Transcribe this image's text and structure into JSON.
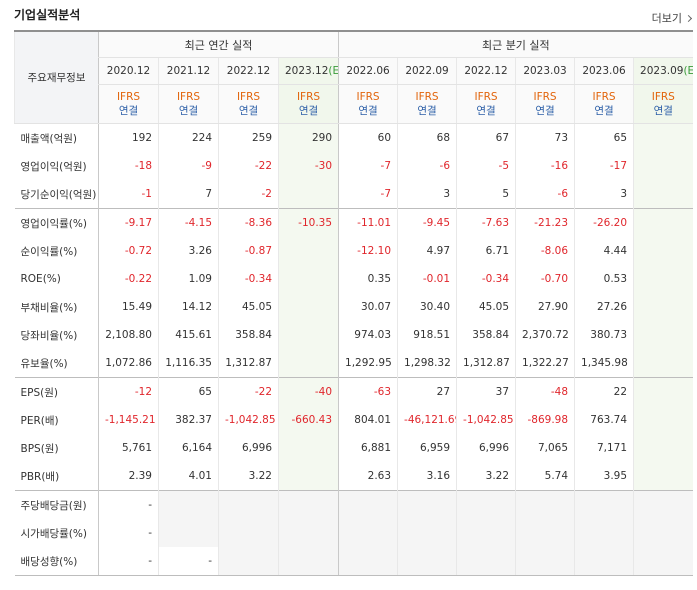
{
  "header": {
    "title": "기업실적분석",
    "more": "더보기"
  },
  "table": {
    "corner": "주요재무정보",
    "groups": [
      "최근 연간 실적",
      "최근 분기 실적"
    ],
    "columns": [
      {
        "date": "2020.12",
        "std": "IFRS",
        "scope": "연결"
      },
      {
        "date": "2021.12",
        "std": "IFRS",
        "scope": "연결"
      },
      {
        "date": "2022.12",
        "std": "IFRS",
        "scope": "연결"
      },
      {
        "date": "2023.12",
        "est": "(E)",
        "std": "IFRS",
        "scope": "연결"
      },
      {
        "date": "2022.06",
        "std": "IFRS",
        "scope": "연결"
      },
      {
        "date": "2022.09",
        "std": "IFRS",
        "scope": "연결"
      },
      {
        "date": "2022.12",
        "std": "IFRS",
        "scope": "연결"
      },
      {
        "date": "2023.03",
        "std": "IFRS",
        "scope": "연결"
      },
      {
        "date": "2023.06",
        "std": "IFRS",
        "scope": "연결"
      },
      {
        "date": "2023.09",
        "est": "(E)",
        "std": "IFRS",
        "scope": "연결"
      }
    ],
    "rows": [
      {
        "label": "매출액(억원)",
        "cells": [
          "192",
          "224",
          "259",
          "290",
          "60",
          "68",
          "67",
          "73",
          "65",
          null
        ]
      },
      {
        "label": "영업이익(억원)",
        "cells": [
          "-18",
          "-9",
          "-22",
          "-30",
          "-7",
          "-6",
          "-5",
          "-16",
          "-17",
          null
        ]
      },
      {
        "label": "당기순이익(억원)",
        "cells": [
          "-1",
          "7",
          "-2",
          null,
          "-7",
          "3",
          "5",
          "-6",
          "3",
          null
        ]
      },
      {
        "label": "영업이익률(%)",
        "cells": [
          "-9.17",
          "-4.15",
          "-8.36",
          "-10.35",
          "-11.01",
          "-9.45",
          "-7.63",
          "-21.23",
          "-26.20",
          null
        ]
      },
      {
        "label": "순이익률(%)",
        "cells": [
          "-0.72",
          "3.26",
          "-0.87",
          null,
          "-12.10",
          "4.97",
          "6.71",
          "-8.06",
          "4.44",
          null
        ]
      },
      {
        "label": "ROE(%)",
        "cells": [
          "-0.22",
          "1.09",
          "-0.34",
          null,
          "0.35",
          "-0.01",
          "-0.34",
          "-0.70",
          "0.53",
          null
        ]
      },
      {
        "label": "부채비율(%)",
        "cells": [
          "15.49",
          "14.12",
          "45.05",
          null,
          "30.07",
          "30.40",
          "45.05",
          "27.90",
          "27.26",
          null
        ]
      },
      {
        "label": "당좌비율(%)",
        "cells": [
          "2,108.80",
          "415.61",
          "358.84",
          null,
          "974.03",
          "918.51",
          "358.84",
          "2,370.72",
          "380.73",
          null
        ]
      },
      {
        "label": "유보율(%)",
        "cells": [
          "1,072.86",
          "1,116.35",
          "1,312.87",
          null,
          "1,292.95",
          "1,298.32",
          "1,312.87",
          "1,322.27",
          "1,345.98",
          null
        ]
      },
      {
        "label": "EPS(원)",
        "cells": [
          "-12",
          "65",
          "-22",
          "-40",
          "-63",
          "27",
          "37",
          "-48",
          "22",
          null
        ]
      },
      {
        "label": "PER(배)",
        "cells": [
          "-1,145.21",
          "382.37",
          "-1,042.85",
          "-660.43",
          "804.01",
          "-46,121.69",
          "-1,042.85",
          "-869.98",
          "763.74",
          null
        ]
      },
      {
        "label": "BPS(원)",
        "cells": [
          "5,761",
          "6,164",
          "6,996",
          null,
          "6,881",
          "6,959",
          "6,996",
          "7,065",
          "7,171",
          null
        ]
      },
      {
        "label": "PBR(배)",
        "cells": [
          "2.39",
          "4.01",
          "3.22",
          null,
          "2.63",
          "3.16",
          "3.22",
          "5.74",
          "3.95",
          null
        ]
      },
      {
        "label": "주당배당금(원)",
        "cells": [
          "-",
          null,
          null,
          null,
          null,
          null,
          null,
          null,
          null,
          null
        ]
      },
      {
        "label": "시가배당률(%)",
        "cells": [
          "-",
          null,
          null,
          null,
          null,
          null,
          null,
          null,
          null,
          null
        ]
      },
      {
        "label": "배당성향(%)",
        "cells": [
          "-",
          "-",
          null,
          null,
          null,
          null,
          null,
          null,
          null,
          null
        ]
      }
    ]
  }
}
